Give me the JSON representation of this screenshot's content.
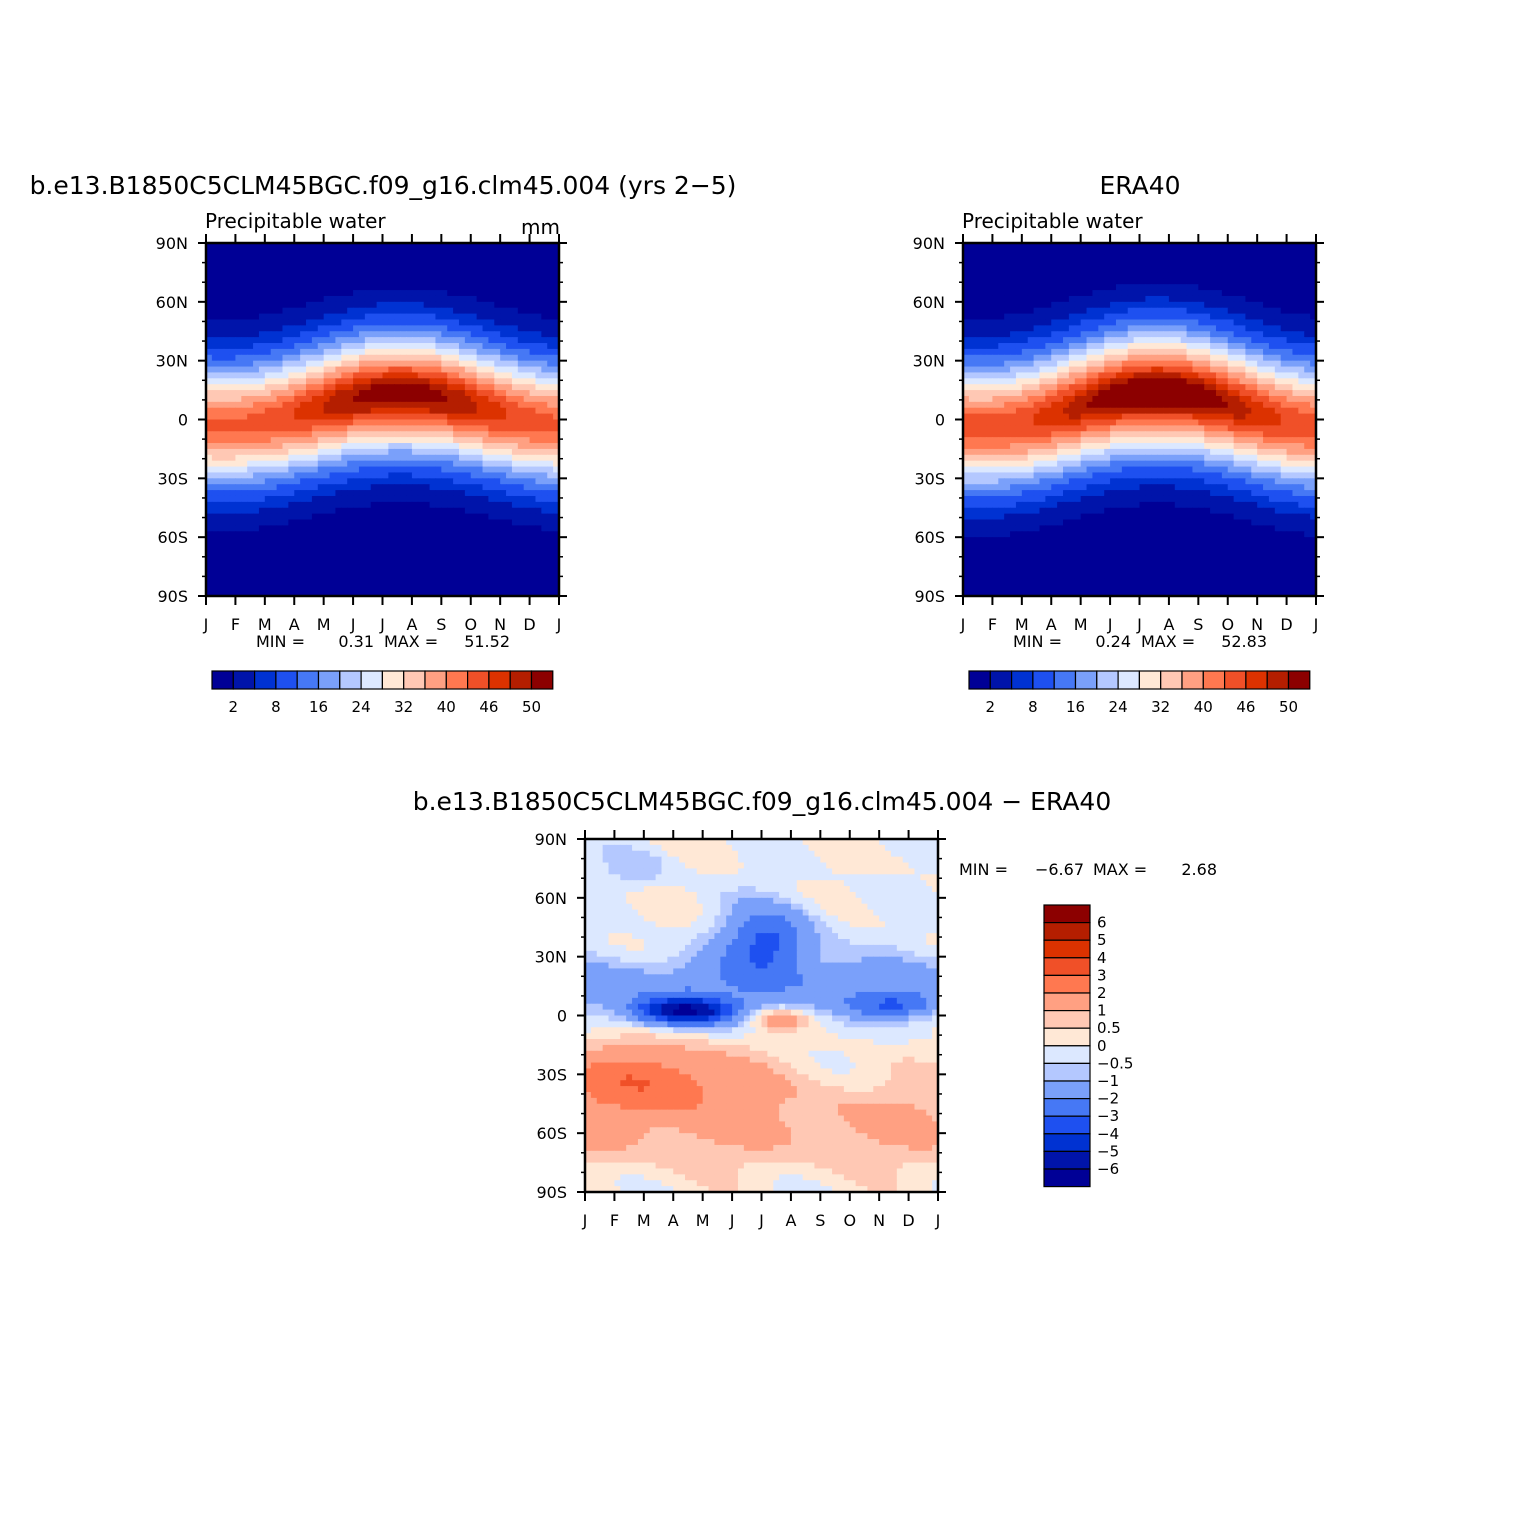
{
  "colors": {
    "full": [
      "#000096",
      "#0014aa",
      "#0032d2",
      "#1e50f0",
      "#4678f5",
      "#7aa0fa",
      "#b4c8ff",
      "#dce8ff",
      "#ffe8d6",
      "#ffc8b4",
      "#ffa082",
      "#ff7850",
      "#f05028",
      "#dc3200",
      "#b41e00",
      "#8c0000"
    ],
    "diff": [
      "#000096",
      "#0014aa",
      "#0032d2",
      "#1e50f0",
      "#4678f5",
      "#7aa0fa",
      "#b4c8ff",
      "#dce8ff",
      "#ffe8d6",
      "#ffc8b4",
      "#ffa082",
      "#ff7850",
      "#f05028",
      "#dc3200",
      "#b41e00",
      "#8c0000"
    ]
  },
  "chart_data": [
    {
      "type": "heatmap",
      "title": "b.e13.B1850C5CLM45BGC.f09_g16.clm45.004 (yrs 2−5)",
      "subtitle": "Precipitable  water",
      "units": "mm",
      "x_ticks": [
        "J",
        "F",
        "M",
        "A",
        "M",
        "J",
        "J",
        "A",
        "S",
        "O",
        "N",
        "D",
        "J"
      ],
      "y_ticks": [
        "90N",
        "60N",
        "30N",
        "0",
        "30S",
        "60S",
        "90S"
      ],
      "y_range": [
        -90,
        90
      ],
      "min_label": "MIN =",
      "min_value": "0.31",
      "max_label": "MAX =",
      "max_value": "51.52",
      "levels": [
        2,
        5,
        8,
        12,
        16,
        20,
        24,
        28,
        32,
        36,
        40,
        43,
        46,
        48,
        50
      ],
      "colorbar_labels": [
        "2",
        "8",
        "16",
        "24",
        "32",
        "40",
        "46",
        "50"
      ],
      "field": {
        "peak": 51.52,
        "polar": 0.31,
        "center_lat": 5,
        "seasonal_shift": 8,
        "width": 30
      }
    },
    {
      "type": "heatmap",
      "title": "ERA40",
      "subtitle": "Precipitable  water",
      "units": "",
      "x_ticks": [
        "J",
        "F",
        "M",
        "A",
        "M",
        "J",
        "J",
        "A",
        "S",
        "O",
        "N",
        "D",
        "J"
      ],
      "y_ticks": [
        "90N",
        "60N",
        "30N",
        "0",
        "30S",
        "60S",
        "90S"
      ],
      "y_range": [
        -90,
        90
      ],
      "min_label": "MIN =",
      "min_value": "0.24",
      "max_label": "MAX =",
      "max_value": "52.83",
      "levels": [
        2,
        5,
        8,
        12,
        16,
        20,
        24,
        28,
        32,
        36,
        40,
        43,
        46,
        48,
        50
      ],
      "colorbar_labels": [
        "2",
        "8",
        "16",
        "24",
        "32",
        "40",
        "46",
        "50"
      ],
      "field": {
        "peak": 52.83,
        "polar": 0.24,
        "center_lat": 5,
        "seasonal_shift": 9,
        "width": 31
      }
    },
    {
      "type": "heatmap",
      "title": "b.e13.B1850C5CLM45BGC.f09_g16.clm45.004 − ERA40",
      "subtitle": "",
      "units": "",
      "x_ticks": [
        "J",
        "F",
        "M",
        "A",
        "M",
        "J",
        "J",
        "A",
        "S",
        "O",
        "N",
        "D",
        "J"
      ],
      "y_ticks": [
        "90N",
        "60N",
        "30N",
        "0",
        "30S",
        "60S",
        "90S"
      ],
      "y_range": [
        -90,
        90
      ],
      "min_label": "MIN =",
      "min_value": "−6.67",
      "max_label": "MAX =",
      "max_value": "2.68",
      "levels": [
        -6,
        -5,
        -4,
        -3,
        -2,
        -1,
        -0.5,
        0,
        0.5,
        1,
        2,
        3,
        4,
        5,
        6
      ],
      "colorbar_labels": [
        "6",
        "5",
        "4",
        "3",
        "2",
        "1",
        "0.5",
        "0",
        "−0.5",
        "−1",
        "−2",
        "−3",
        "−4",
        "−5",
        "−6"
      ]
    }
  ]
}
